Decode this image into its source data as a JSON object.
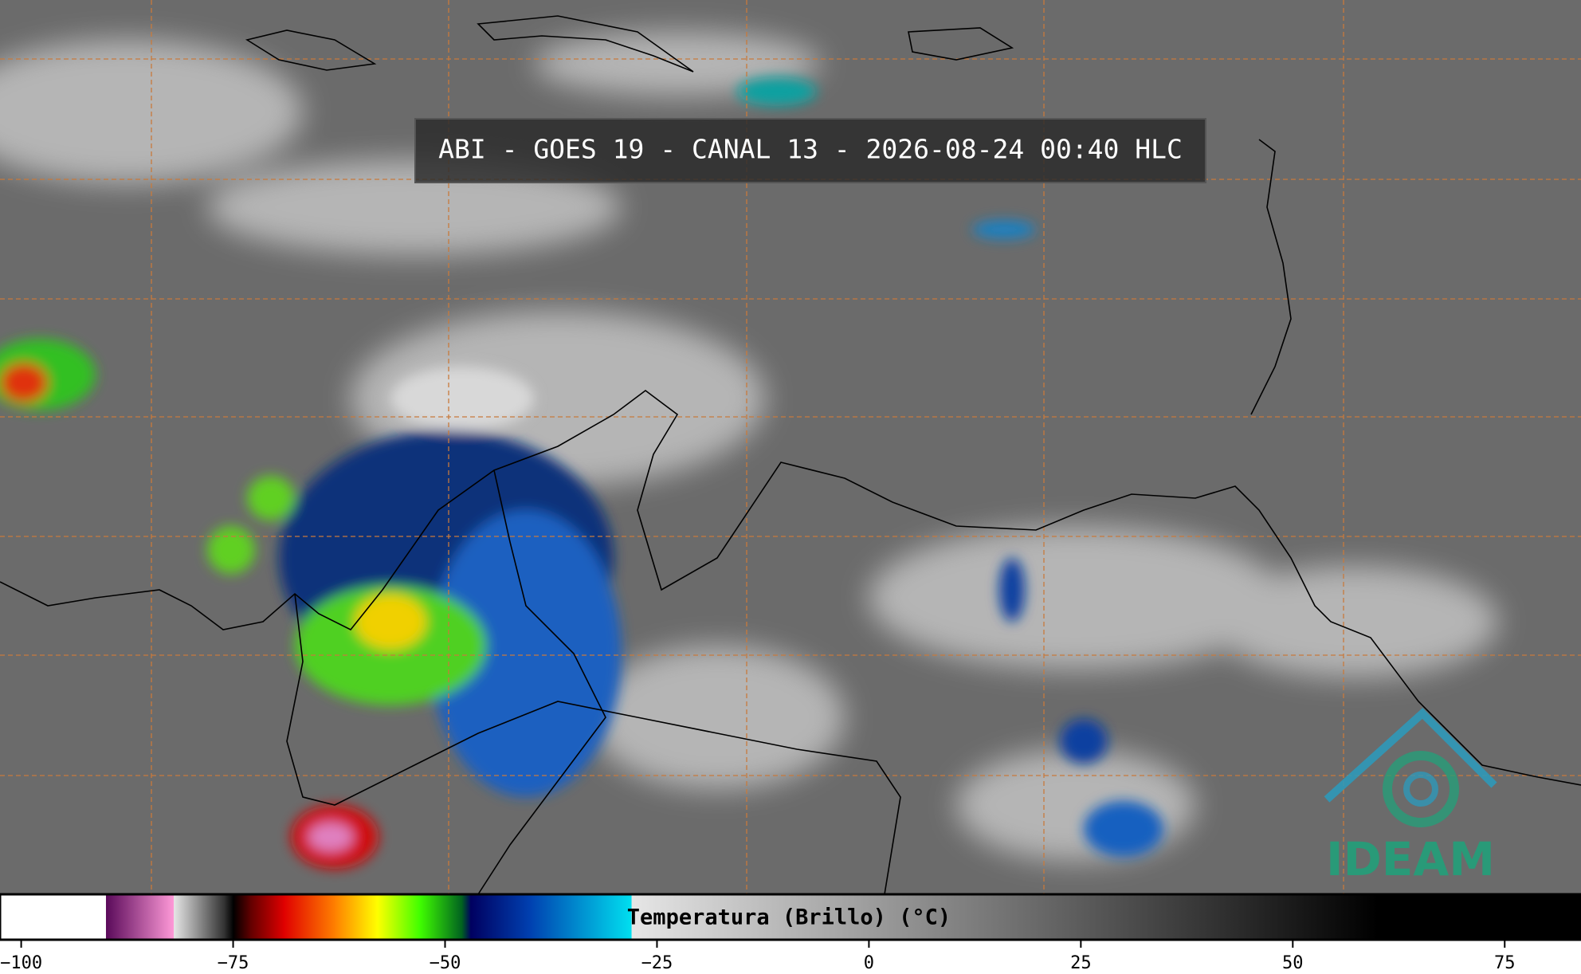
{
  "header": {
    "title": "ABI - GOES 19 - CANAL 13 - 2026-08-24 00:40 HLC"
  },
  "colorbar": {
    "label": "Temperatura (Brillo) (°C)",
    "lim": [
      -102.5,
      84
    ],
    "ticks": [
      {
        "value": -100,
        "label": "−100"
      },
      {
        "value": -75,
        "label": "−75"
      },
      {
        "value": -50,
        "label": "−50"
      },
      {
        "value": -25,
        "label": "−25"
      },
      0,
      25,
      50,
      75
    ],
    "stops": [
      {
        "value": -102.5,
        "color": "#ffffff"
      },
      {
        "value": -90,
        "color": "#ffffff"
      },
      {
        "value": -90,
        "color": "#5a0a5a"
      },
      {
        "value": -82,
        "color": "#ff9ad8"
      },
      {
        "value": -82,
        "color": "#e6e6e6"
      },
      {
        "value": -76,
        "color": "#303030"
      },
      {
        "value": -75,
        "color": "#000000"
      },
      {
        "value": -73,
        "color": "#600000"
      },
      {
        "value": -69,
        "color": "#e00000"
      },
      {
        "value": -63,
        "color": "#ff8000"
      },
      {
        "value": -58,
        "color": "#ffff00"
      },
      {
        "value": -53,
        "color": "#40ff00"
      },
      {
        "value": -48,
        "color": "#006020"
      },
      {
        "value": -47,
        "color": "#000060"
      },
      {
        "value": -40,
        "color": "#0040b0"
      },
      {
        "value": -28,
        "color": "#00e0f0"
      },
      {
        "value": -28,
        "color": "#e6e6e6"
      },
      {
        "value": 60,
        "color": "#000000"
      },
      {
        "value": 84,
        "color": "#000000"
      }
    ]
  },
  "logo": {
    "text": "IDEAM"
  }
}
